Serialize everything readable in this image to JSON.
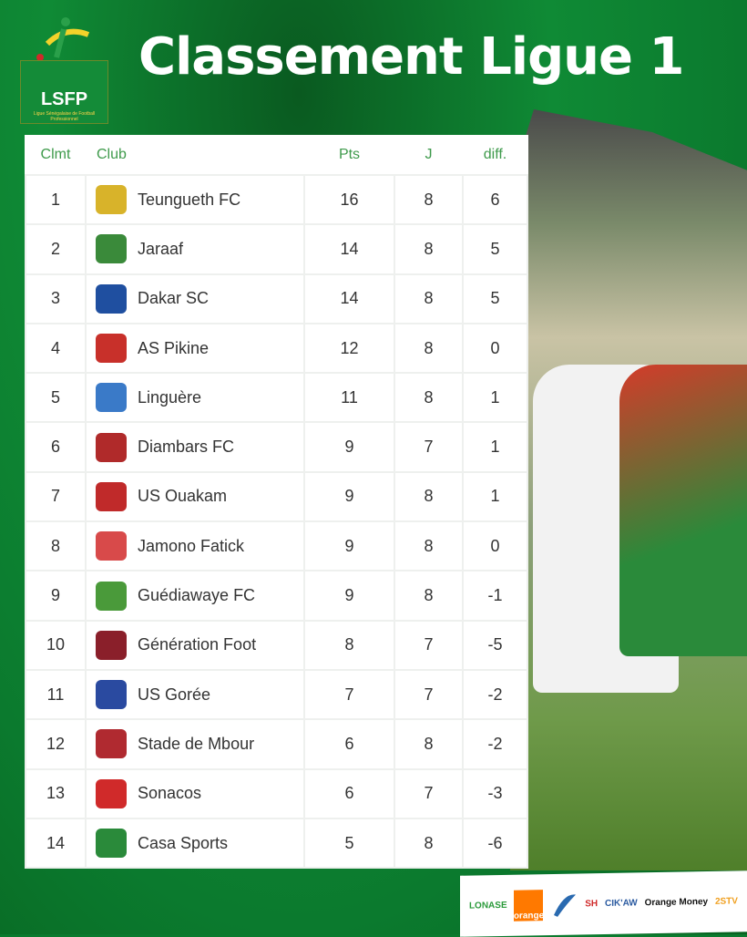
{
  "title": "Classement Ligue 1",
  "logo": {
    "text": "LSFP",
    "subtitle": "Ligue Sénégalaise de Football Professionnel"
  },
  "table": {
    "headers": {
      "rank": "Clmt",
      "club": "Club",
      "pts": "Pts",
      "played": "J",
      "diff": "diff."
    },
    "rows": [
      {
        "rank": "1",
        "club": "Teungueth FC",
        "pts": "16",
        "played": "8",
        "diff": "6",
        "crest": "#d8b32a"
      },
      {
        "rank": "2",
        "club": "Jaraaf",
        "pts": "14",
        "played": "8",
        "diff": "5",
        "crest": "#3a8a3a"
      },
      {
        "rank": "3",
        "club": "Dakar SC",
        "pts": "14",
        "played": "8",
        "diff": "5",
        "crest": "#1f4fa0"
      },
      {
        "rank": "4",
        "club": "AS Pikine",
        "pts": "12",
        "played": "8",
        "diff": "0",
        "crest": "#c8302a"
      },
      {
        "rank": "5",
        "club": "Linguère",
        "pts": "11",
        "played": "8",
        "diff": "1",
        "crest": "#3a7ac8"
      },
      {
        "rank": "6",
        "club": "Diambars FC",
        "pts": "9",
        "played": "7",
        "diff": "1",
        "crest": "#b02a2a"
      },
      {
        "rank": "7",
        "club": "US Ouakam",
        "pts": "9",
        "played": "8",
        "diff": "1",
        "crest": "#c02a2a"
      },
      {
        "rank": "8",
        "club": "Jamono Fatick",
        "pts": "9",
        "played": "8",
        "diff": "0",
        "crest": "#d84a4a"
      },
      {
        "rank": "9",
        "club": "Guédiawaye FC",
        "pts": "9",
        "played": "8",
        "diff": "-1",
        "crest": "#4a9a3a"
      },
      {
        "rank": "10",
        "club": "Génération Foot",
        "pts": "8",
        "played": "7",
        "diff": "-5",
        "crest": "#8a1f2a"
      },
      {
        "rank": "11",
        "club": "US Gorée",
        "pts": "7",
        "played": "7",
        "diff": "-2",
        "crest": "#2a4aa0"
      },
      {
        "rank": "12",
        "club": "Stade de Mbour",
        "pts": "6",
        "played": "8",
        "diff": "-2",
        "crest": "#b02a30"
      },
      {
        "rank": "13",
        "club": "Sonacos",
        "pts": "6",
        "played": "7",
        "diff": "-3",
        "crest": "#d02a2a"
      },
      {
        "rank": "14",
        "club": "Casa Sports",
        "pts": "5",
        "played": "8",
        "diff": "-6",
        "crest": "#2a8a3a"
      }
    ]
  },
  "sponsors": [
    {
      "name": "LONASE",
      "color": "#2a9a3a"
    },
    {
      "name": "orange",
      "color": "#ff7900"
    },
    {
      "name": "",
      "color": "#2a6ab0"
    },
    {
      "name": "SH",
      "color": "#d02a2a"
    },
    {
      "name": "CIK'AW",
      "color": "#2a5aa0"
    },
    {
      "name": "Orange Money",
      "color": "#111111"
    },
    {
      "name": "2STV",
      "color": "#f0a020"
    }
  ]
}
